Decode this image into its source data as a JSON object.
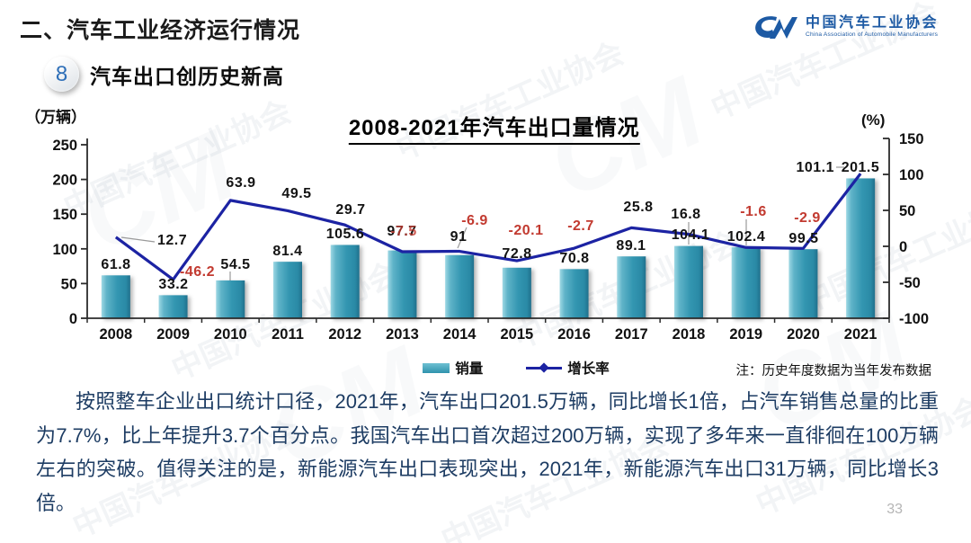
{
  "slide": {
    "section_title": "二、汽车工业经济运行情况",
    "badge_number": "8",
    "subtitle": "汽车出口创历史新高",
    "page_number": "33",
    "watermark_text": "中国汽车工业协会"
  },
  "logo": {
    "monogram": "CM",
    "name_cn": "中国汽车工业协会",
    "name_en": "China Association of Automobile Manufacturers"
  },
  "chart_data": {
    "type": "bar+line",
    "title": "2008-2021年汽车出口量情况",
    "categories": [
      "2008",
      "2009",
      "2010",
      "2011",
      "2012",
      "2013",
      "2014",
      "2015",
      "2016",
      "2017",
      "2018",
      "2019",
      "2020",
      "2021"
    ],
    "series": [
      {
        "name": "销量",
        "type": "bar",
        "unit": "万辆",
        "values": [
          61.8,
          33.2,
          54.5,
          81.4,
          105.6,
          97.7,
          91,
          72.8,
          70.8,
          89.1,
          104.1,
          102.4,
          99.5,
          201.5
        ]
      },
      {
        "name": "增长率",
        "type": "line",
        "unit": "%",
        "values": [
          12.7,
          -46.2,
          63.9,
          49.5,
          29.7,
          -7.5,
          -6.9,
          -20.1,
          -2.7,
          25.8,
          16.8,
          -1.6,
          -2.9,
          101.1
        ]
      }
    ],
    "left_axis": {
      "label": "（万辆）",
      "min": 0,
      "max": 250,
      "ticks": [
        0,
        50,
        100,
        150,
        200,
        250
      ]
    },
    "right_axis": {
      "label": "(%)",
      "min": -100,
      "max": 150,
      "ticks": [
        150,
        100,
        50,
        0,
        -50,
        -100
      ]
    },
    "legend_position": "bottom",
    "grid": false,
    "note": "注：历史年度数据为当年发布数据",
    "colors": {
      "bar": "#2f93ad",
      "bar_light": "#9ed8e4",
      "line": "#1c23a3",
      "negative_label": "#c23a30",
      "positive_label": "#131313"
    }
  },
  "paragraph": "按照整车企业出口统计口径，2021年，汽车出口201.5万辆，同比增长1倍，占汽车销售总量的比重为7.7%，比上年提升3.7个百分点。我国汽车出口首次超过200万辆，实现了多年来一直徘徊在100万辆左右的突破。值得关注的是，新能源汽车出口表现突出，2021年，新能源汽车出口31万辆，同比增长3倍。"
}
